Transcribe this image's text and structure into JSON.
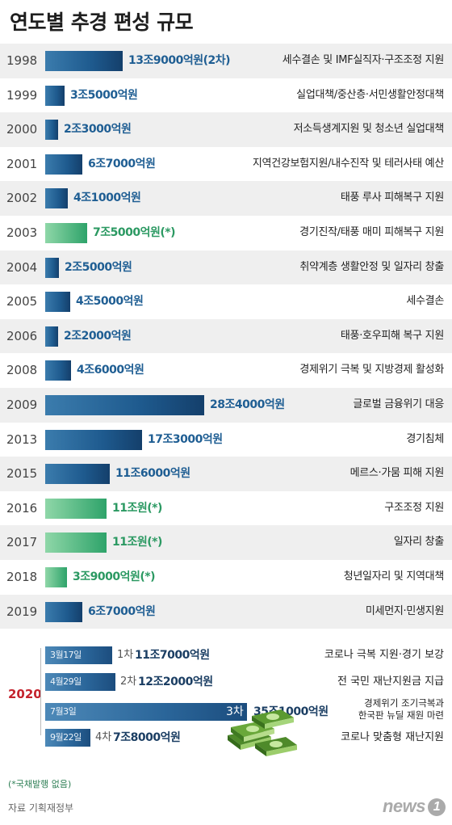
{
  "title": "연도별 추경 편성 규모",
  "colors": {
    "blue": "#1e5a8e",
    "green": "#2ea36a",
    "year2020": "#c4232d"
  },
  "chart_data": {
    "type": "bar",
    "unit": "억원",
    "categories": [
      "1998",
      "1999",
      "2000",
      "2001",
      "2002",
      "2003",
      "2004",
      "2005",
      "2006",
      "2008",
      "2009",
      "2013",
      "2015",
      "2016",
      "2017",
      "2018",
      "2019"
    ],
    "values": [
      139000,
      35000,
      23000,
      67000,
      41000,
      75000,
      25000,
      45000,
      22000,
      46000,
      284000,
      173000,
      116000,
      110000,
      110000,
      39000,
      67000
    ],
    "no_bond": [
      false,
      false,
      false,
      false,
      false,
      true,
      false,
      false,
      false,
      false,
      false,
      false,
      false,
      true,
      true,
      true,
      false
    ],
    "rows": [
      {
        "year": "1998",
        "amount": "13조9000억원(2차)",
        "reason": "세수결손 및 IMF실직자·구조조정 지원"
      },
      {
        "year": "1999",
        "amount": "3조5000억원",
        "reason": "실업대책/중산층·서민생활안정대책"
      },
      {
        "year": "2000",
        "amount": "2조3000억원",
        "reason": "저소득생계지원 및 청소년 실업대책"
      },
      {
        "year": "2001",
        "amount": "6조7000억원",
        "reason": "지역건강보험지원/내수진작 및 테러사태 예산"
      },
      {
        "year": "2002",
        "amount": "4조1000억원",
        "reason": "태풍 루사 피해복구 지원"
      },
      {
        "year": "2003",
        "amount": "7조5000억원(*)",
        "reason": "경기진작/태풍 매미 피해복구 지원"
      },
      {
        "year": "2004",
        "amount": "2조5000억원",
        "reason": "취약계층 생활안정 및 일자리 창출"
      },
      {
        "year": "2005",
        "amount": "4조5000억원",
        "reason": "세수결손"
      },
      {
        "year": "2006",
        "amount": "2조2000억원",
        "reason": "태풍·호우피해 복구 지원"
      },
      {
        "year": "2008",
        "amount": "4조6000억원",
        "reason": "경제위기 극복 및 지방경제 활성화"
      },
      {
        "year": "2009",
        "amount": "28조4000억원",
        "reason": "글로벌 금융위기 대응"
      },
      {
        "year": "2013",
        "amount": "17조3000억원",
        "reason": "경기침체"
      },
      {
        "year": "2015",
        "amount": "11조6000억원",
        "reason": "메르스·가뭄 피해 지원"
      },
      {
        "year": "2016",
        "amount": "11조원(*)",
        "reason": "구조조정 지원"
      },
      {
        "year": "2017",
        "amount": "11조원(*)",
        "reason": "일자리 창출"
      },
      {
        "year": "2018",
        "amount": "3조9000억원(*)",
        "reason": "청년일자리 및 지역대책"
      },
      {
        "year": "2019",
        "amount": "6조7000억원",
        "reason": "미세먼지·민생지원"
      }
    ],
    "year2020": {
      "label": "2020",
      "rounds": [
        {
          "date": "3월17일",
          "order": "1차",
          "amount": "11조7000억원",
          "value": 117000,
          "reason": "코로나 극복 지원·경기 보강"
        },
        {
          "date": "4월29일",
          "order": "2차",
          "amount": "12조2000억원",
          "value": 122000,
          "reason": "전 국민 재난지원금 지급"
        },
        {
          "date": "7월3일",
          "order": "3차",
          "amount": "35조1000억원",
          "value": 351000,
          "reason": "경제위기 조기극복과\n한국판 뉴딜 재원 마련"
        },
        {
          "date": "9월22일",
          "order": "4차",
          "amount": "7조8000억원",
          "value": 78000,
          "reason": "코로나 맞춤형 재난지원"
        }
      ]
    }
  },
  "footnote": "(*국채발행 없음)",
  "source": "자료 기획재정부",
  "logo": {
    "text": "news",
    "badge": "1"
  }
}
